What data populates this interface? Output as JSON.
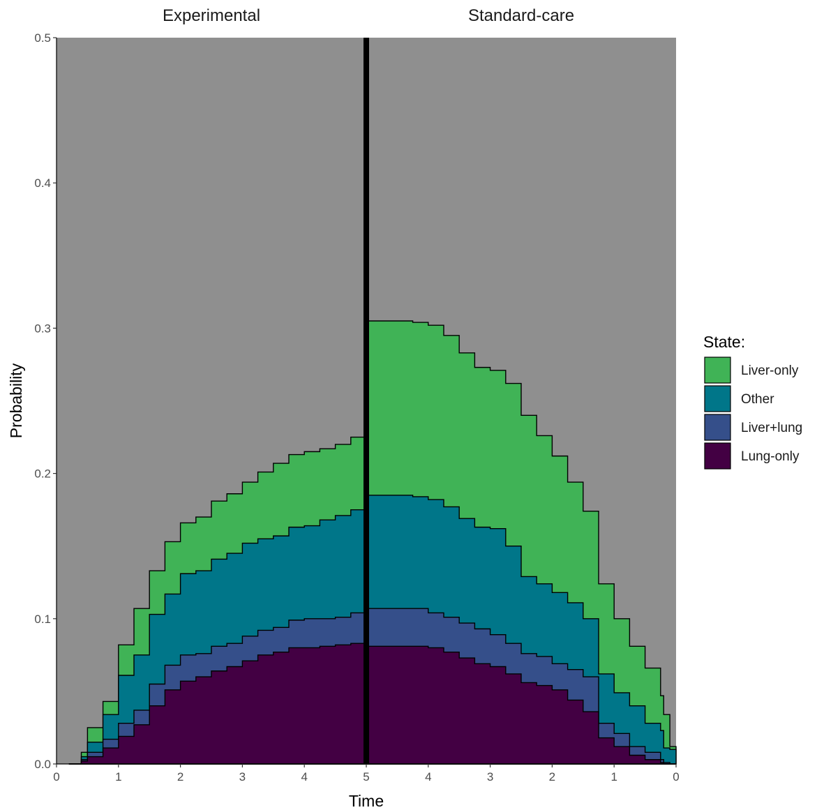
{
  "chart_data": {
    "type": "area",
    "facets": [
      "Experimental",
      "Standard-care"
    ],
    "xlabel": "Time",
    "ylabel": "Probability",
    "ylim": [
      0,
      0.5
    ],
    "y_ticks": [
      0.0,
      0.1,
      0.2,
      0.3,
      0.4,
      0.5
    ],
    "y_tick_labels": [
      "0.0",
      "0.1",
      "0.2",
      "0.3",
      "0.4",
      "0.5"
    ],
    "x_ticks_left": [
      0,
      1,
      2,
      3,
      4,
      5
    ],
    "x_ticks_right": [
      5,
      4,
      3,
      2,
      1,
      0
    ],
    "x_tick_labels": [
      "0",
      "1",
      "2",
      "3",
      "4",
      "5",
      "4",
      "3",
      "2",
      "1",
      "0"
    ],
    "background_color": "#8f8f8f",
    "legend": {
      "title": "State:",
      "position": "right",
      "entries": [
        {
          "label": "Liver-only",
          "color": "#40b356"
        },
        {
          "label": "Other",
          "color": "#007689"
        },
        {
          "label": "Liver+lung",
          "color": "#354f8a"
        },
        {
          "label": "Lung-only",
          "color": "#430043"
        }
      ]
    },
    "stack_order": [
      "Lung-only",
      "Liver+lung",
      "Other",
      "Liver-only"
    ],
    "series_colors": {
      "Lung-only": "#430043",
      "Liver+lung": "#354f8a",
      "Other": "#007689",
      "Liver-only": "#40b356"
    },
    "panels": [
      {
        "name": "Experimental",
        "time": [
          0.2,
          0.4,
          0.5,
          0.75,
          1.0,
          1.25,
          1.5,
          1.75,
          2.0,
          2.25,
          2.5,
          2.75,
          3.0,
          3.25,
          3.5,
          3.75,
          4.0,
          4.25,
          4.5,
          4.75,
          5.0
        ],
        "cumulative": {
          "Lung-only": [
            0.0,
            0.002,
            0.005,
            0.011,
            0.019,
            0.027,
            0.04,
            0.051,
            0.057,
            0.06,
            0.064,
            0.067,
            0.071,
            0.075,
            0.077,
            0.08,
            0.08,
            0.081,
            0.082,
            0.083,
            0.084
          ],
          "Liver+lung": [
            0.0,
            0.003,
            0.008,
            0.017,
            0.028,
            0.037,
            0.055,
            0.068,
            0.075,
            0.076,
            0.081,
            0.083,
            0.088,
            0.092,
            0.094,
            0.099,
            0.1,
            0.1,
            0.101,
            0.104,
            0.107
          ],
          "Other": [
            0.0,
            0.005,
            0.015,
            0.034,
            0.061,
            0.075,
            0.103,
            0.117,
            0.131,
            0.133,
            0.141,
            0.145,
            0.152,
            0.155,
            0.157,
            0.163,
            0.164,
            0.168,
            0.171,
            0.175,
            0.178
          ],
          "Liver-only": [
            0.0,
            0.008,
            0.025,
            0.043,
            0.082,
            0.107,
            0.133,
            0.153,
            0.166,
            0.17,
            0.181,
            0.186,
            0.194,
            0.201,
            0.207,
            0.213,
            0.215,
            0.217,
            0.22,
            0.225,
            0.228
          ]
        }
      },
      {
        "name": "Standard-care",
        "time_remaining": [
          5.0,
          4.25,
          4.0,
          3.75,
          3.5,
          3.25,
          3.0,
          2.75,
          2.5,
          2.25,
          2.0,
          1.75,
          1.5,
          1.25,
          1.0,
          0.75,
          0.5,
          0.25,
          0.2,
          0.1,
          0.0
        ],
        "cumulative": {
          "Lung-only": [
            0.081,
            0.081,
            0.08,
            0.077,
            0.073,
            0.069,
            0.067,
            0.062,
            0.056,
            0.054,
            0.051,
            0.044,
            0.036,
            0.018,
            0.012,
            0.006,
            0.003,
            0.001,
            0.0,
            0.0,
            0.0
          ],
          "Liver+lung": [
            0.107,
            0.107,
            0.104,
            0.101,
            0.097,
            0.093,
            0.089,
            0.083,
            0.076,
            0.074,
            0.069,
            0.065,
            0.06,
            0.028,
            0.021,
            0.012,
            0.008,
            0.003,
            0.001,
            0.0,
            0.0
          ],
          "Other": [
            0.185,
            0.184,
            0.182,
            0.177,
            0.169,
            0.163,
            0.162,
            0.15,
            0.129,
            0.124,
            0.118,
            0.111,
            0.1,
            0.062,
            0.049,
            0.04,
            0.028,
            0.023,
            0.011,
            0.01,
            0.01
          ],
          "Liver-only": [
            0.305,
            0.304,
            0.302,
            0.295,
            0.283,
            0.273,
            0.271,
            0.262,
            0.24,
            0.226,
            0.212,
            0.194,
            0.174,
            0.124,
            0.1,
            0.081,
            0.066,
            0.047,
            0.034,
            0.012,
            0.01
          ]
        }
      }
    ]
  }
}
